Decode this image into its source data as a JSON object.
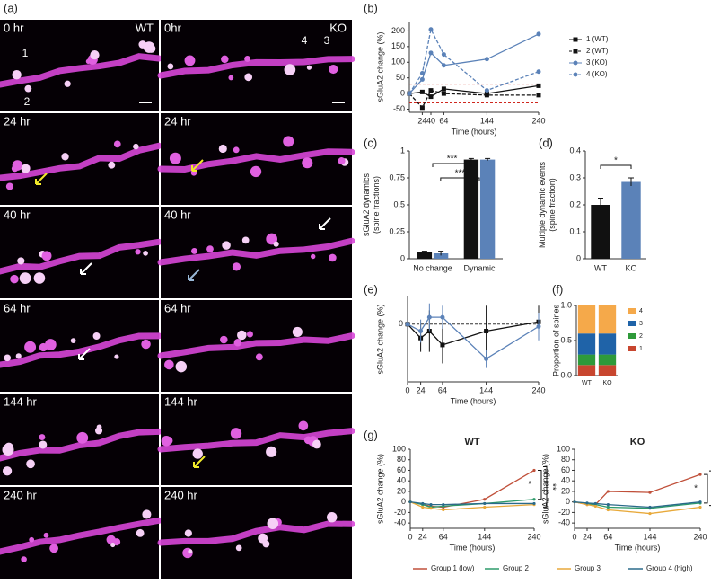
{
  "panel_a": {
    "label": "(a)",
    "columns": [
      "WT",
      "KO"
    ],
    "left_times": [
      "0 hr",
      "24 hr",
      "40 hr",
      "64 hr",
      "144 hr",
      "240 hr"
    ],
    "right_times": [
      "0hr",
      "24 hr",
      "40 hr",
      "64 hr",
      "144 hr",
      "240 hr"
    ],
    "spine_labels": [
      "1",
      "2",
      "4",
      "3"
    ]
  },
  "chart_data": [
    {
      "type": "line",
      "label": "(b)",
      "ylabel": [
        "sGluA2 change (%)"
      ],
      "xlabel": "Time (hours)",
      "x": [
        0,
        24,
        40,
        64,
        144,
        240
      ],
      "xlim": [
        0,
        240
      ],
      "xticks": [
        24,
        40,
        64,
        144,
        240
      ],
      "ylim": [
        -60,
        230
      ],
      "yticks": [
        -50,
        0,
        50,
        100,
        150,
        200
      ],
      "hlines": [
        30,
        -30
      ],
      "hline_color": "#d0281e",
      "legend": "right",
      "series": [
        {
          "name": "1 (WT)",
          "color": "#111111",
          "marker": "square",
          "dashed": false,
          "values": [
            0,
            5,
            -10,
            15,
            0,
            25
          ]
        },
        {
          "name": "2 (WT)",
          "color": "#111111",
          "marker": "square",
          "dashed": true,
          "values": [
            0,
            -45,
            10,
            0,
            -5,
            -5
          ]
        },
        {
          "name": "3 (KO)",
          "color": "#5b82b8",
          "marker": "circle",
          "dashed": false,
          "values": [
            0,
            45,
            130,
            90,
            110,
            190
          ]
        },
        {
          "name": "4 (KO)",
          "color": "#5b82b8",
          "marker": "circle",
          "dashed": true,
          "values": [
            0,
            65,
            205,
            125,
            10,
            70
          ]
        }
      ]
    },
    {
      "type": "bar",
      "label": "(c)",
      "ylabel": [
        "sGluA2 dynamics",
        "(spine fractions)"
      ],
      "categories": [
        "No change",
        "Dynamic"
      ],
      "ylim": [
        0,
        1
      ],
      "yticks": [
        0,
        0.25,
        0.5,
        0.75,
        1
      ],
      "annotations": [
        "***",
        "***"
      ],
      "series": [
        {
          "color": "#111111",
          "values": [
            0.06,
            0.92
          ],
          "errors": [
            0.01,
            0.01
          ]
        },
        {
          "color": "#5b82b8",
          "values": [
            0.05,
            0.92
          ],
          "errors": [
            0.02,
            0.01
          ]
        }
      ]
    },
    {
      "type": "bar",
      "label": "(d)",
      "ylabel": [
        "Multiple dynamic events",
        "(spine fraction)"
      ],
      "categories": [
        "WT",
        "KO"
      ],
      "ylim": [
        0,
        0.4
      ],
      "yticks": [
        0,
        0.1,
        0.2,
        0.3,
        0.4
      ],
      "annotations": [
        "*"
      ],
      "series": [
        {
          "colors": [
            "#111111",
            "#5b82b8"
          ],
          "values": [
            0.2,
            0.285
          ],
          "errors": [
            0.025,
            0.015
          ]
        }
      ]
    },
    {
      "type": "line",
      "label": "(e)",
      "ylabel": [
        "sGluA2 change (%)"
      ],
      "xlabel": "Time (hours)",
      "x": [
        0,
        24,
        40,
        64,
        144,
        240
      ],
      "xlim": [
        0,
        240
      ],
      "xticks": [
        0,
        24,
        64,
        144,
        240
      ],
      "ylim": [
        -25,
        12
      ],
      "yticks": [
        0
      ],
      "hlines": [
        0
      ],
      "hline_color": "#333333",
      "series": [
        {
          "color": "#111111",
          "marker": "square",
          "dashed": false,
          "values": [
            0,
            -6,
            -3,
            -9,
            -3,
            1
          ],
          "errors": [
            0,
            6,
            9,
            8,
            11,
            7
          ]
        },
        {
          "color": "#5b82b8",
          "marker": "circle",
          "dashed": false,
          "values": [
            0,
            -3,
            3,
            3,
            -15,
            -1
          ],
          "errors": [
            0,
            5,
            6,
            5,
            4,
            6
          ]
        }
      ]
    },
    {
      "type": "stacked_bar",
      "label": "(f)",
      "ylabel": [
        "Proportion of spines"
      ],
      "categories": [
        "WT",
        "KO"
      ],
      "ylim": [
        0,
        1
      ],
      "yticks": [
        {
          "value": 0,
          "label": "0.0"
        },
        0.5,
        {
          "value": 1,
          "label": "1.0"
        }
      ],
      "series": [
        {
          "name": "1",
          "color": "#c8462f",
          "values": [
            0.15,
            0.15
          ]
        },
        {
          "name": "2",
          "color": "#2e9a3a",
          "values": [
            0.15,
            0.15
          ]
        },
        {
          "name": "3",
          "color": "#1f63a8",
          "values": [
            0.3,
            0.3
          ]
        },
        {
          "name": "4",
          "color": "#f5a94a",
          "values": [
            0.4,
            0.4
          ]
        }
      ]
    },
    {
      "type": "line",
      "label": "(g)",
      "title": "WT",
      "ylabel": [
        "sGluA2 change (%)"
      ],
      "xlabel": "Time (hours)",
      "x": [
        0,
        24,
        40,
        64,
        144,
        240
      ],
      "xlim": [
        0,
        240
      ],
      "xticks": [
        0,
        24,
        64,
        144,
        240
      ],
      "ylim": [
        -50,
        100
      ],
      "yticks": [
        -40,
        -20,
        0,
        20,
        40,
        60,
        80,
        100
      ],
      "legend": "bottom",
      "annotations": [
        "*",
        "**"
      ],
      "series": [
        {
          "name": "Group 1 (low)",
          "color": "#c0503a",
          "values": [
            0,
            -5,
            -8,
            -10,
            5,
            60
          ]
        },
        {
          "name": "Group 2",
          "color": "#2e9a6a",
          "values": [
            0,
            -5,
            -10,
            -8,
            -3,
            5
          ]
        },
        {
          "name": "Group 3",
          "color": "#e8a93a",
          "values": [
            0,
            -10,
            -12,
            -15,
            -10,
            -5
          ]
        },
        {
          "name": "Group 4 (high)",
          "color": "#2a6a8a",
          "values": [
            0,
            -3,
            -5,
            -5,
            -3,
            -3
          ]
        }
      ]
    },
    {
      "type": "line",
      "title": "KO",
      "ylabel": [
        "sGluA2 change (%)"
      ],
      "xlabel": "Time (hours)",
      "x": [
        0,
        24,
        40,
        64,
        144,
        240
      ],
      "xlim": [
        0,
        240
      ],
      "xticks": [
        0,
        24,
        64,
        144,
        240
      ],
      "ylim": [
        -50,
        100
      ],
      "yticks": [
        -40,
        -20,
        0,
        20,
        40,
        60,
        80,
        100
      ],
      "annotations": [
        "*",
        "**"
      ],
      "series": [
        {
          "color": "#c0503a",
          "values": [
            0,
            -5,
            -5,
            20,
            18,
            52
          ]
        },
        {
          "color": "#2e9a6a",
          "values": [
            0,
            -3,
            -5,
            -10,
            -12,
            -2
          ]
        },
        {
          "color": "#e8a93a",
          "values": [
            0,
            -5,
            -8,
            -15,
            -22,
            -10
          ]
        },
        {
          "color": "#2a6a8a",
          "values": [
            0,
            -2,
            -3,
            -5,
            -10,
            0
          ]
        }
      ]
    }
  ]
}
